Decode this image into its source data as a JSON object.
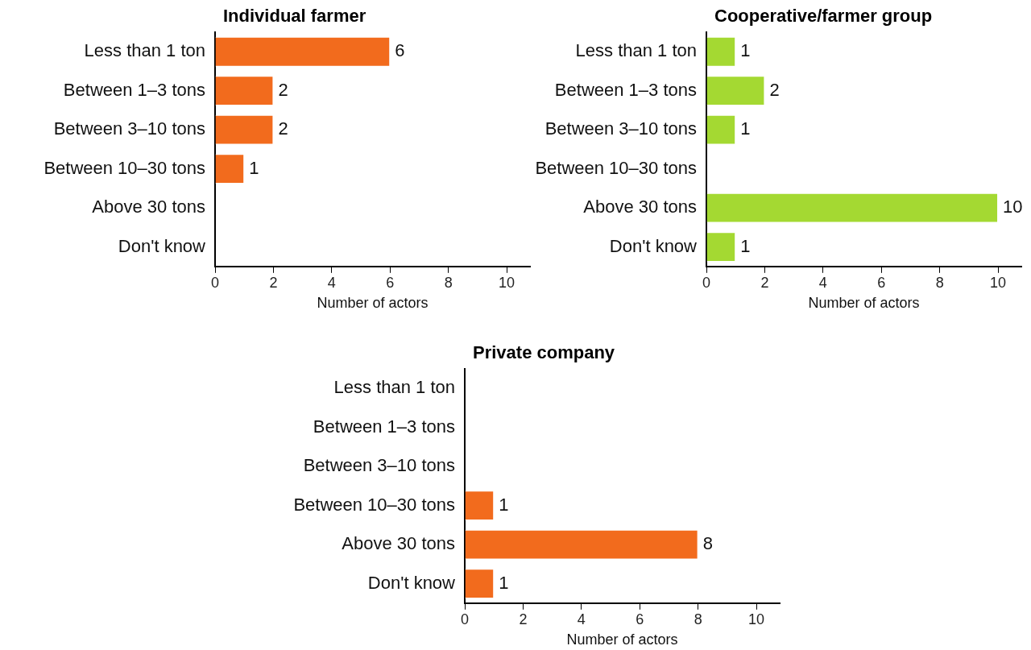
{
  "chart_data": [
    {
      "type": "bar",
      "orientation": "horizontal",
      "title": "Individual farmer",
      "xlabel": "Number of actors",
      "categories": [
        "Less than 1 ton",
        "Between 1–3 tons",
        "Between 3–10 tons",
        "Between 10–30 tons",
        "Above 30 tons",
        "Don't know"
      ],
      "series": [
        {
          "color": "#f26b1d",
          "values": [
            6,
            2,
            2,
            1,
            null,
            null
          ]
        }
      ],
      "xlim": [
        0,
        10.8
      ],
      "xticks": [
        0,
        2,
        4,
        6,
        8,
        10
      ],
      "grid": false,
      "legend": false,
      "data_labels": true
    },
    {
      "type": "bar",
      "orientation": "horizontal",
      "title": "Cooperative/farmer group",
      "xlabel": "Number of actors",
      "categories": [
        "Less than 1 ton",
        "Between 1–3 tons",
        "Between 3–10 tons",
        "Between 10–30 tons",
        "Above 30 tons",
        "Don't know"
      ],
      "series": [
        {
          "color": "#a4d932",
          "values": [
            1,
            2,
            1,
            null,
            10,
            1
          ]
        }
      ],
      "xlim": [
        0,
        10.8
      ],
      "xticks": [
        0,
        2,
        4,
        6,
        8,
        10
      ],
      "grid": false,
      "legend": false,
      "data_labels": true
    },
    {
      "type": "bar",
      "orientation": "horizontal",
      "title": "Private company",
      "xlabel": "Number of actors",
      "categories": [
        "Less than 1 ton",
        "Between 1–3 tons",
        "Between 3–10 tons",
        "Between 10–30 tons",
        "Above 30 tons",
        "Don't know"
      ],
      "series": [
        {
          "color": "#f26b1d",
          "values": [
            null,
            null,
            null,
            1,
            8,
            1
          ]
        }
      ],
      "xlim": [
        0,
        10.8
      ],
      "xticks": [
        0,
        2,
        4,
        6,
        8,
        10
      ],
      "grid": false,
      "legend": false,
      "data_labels": true
    }
  ]
}
